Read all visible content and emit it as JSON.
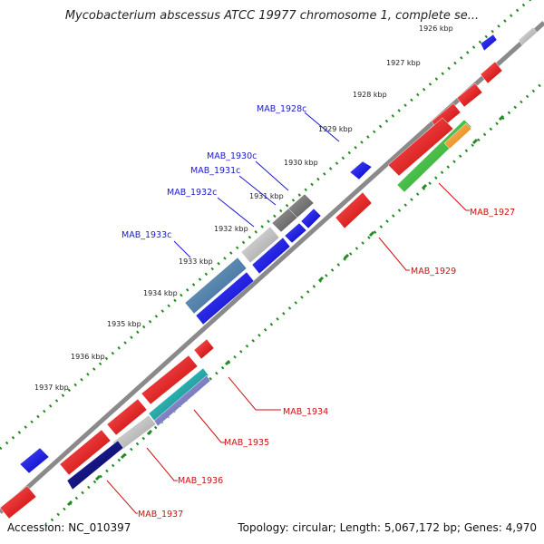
{
  "title": "Mycobacterium abscessus ATCC 19977 chromosome 1, complete se...",
  "footer": {
    "accession": "Accession: NC_010397",
    "summary": "Topology: circular; Length: 5,067,172 bp; Genes: 4,970"
  },
  "kbp_labels": [
    "1926 kbp",
    "1927 kbp",
    "1928 kbp",
    "1929 kbp",
    "1930 kbp",
    "1931 kbp",
    "1932 kbp",
    "1933 kbp",
    "1934 kbp",
    "1935 kbp",
    "1936 kbp",
    "1937 kbp"
  ],
  "gene_labels_top": [
    "MAB_1928c",
    "MAB_1930c",
    "MAB_1931c",
    "MAB_1932c",
    "MAB_1933c"
  ],
  "gene_labels_bottom": [
    "MAB_1927",
    "MAB_1929",
    "MAB_1934",
    "MAB_1935",
    "MAB_1936",
    "MAB_1937"
  ],
  "colors": {
    "backbone": "#8a8a8a",
    "cds_forward": "#e8141a",
    "cds_reverse": "#1414e6",
    "gc_skew": "#228b22",
    "label_reverse": "#1a1acc",
    "label_forward": "#cc1111"
  }
}
